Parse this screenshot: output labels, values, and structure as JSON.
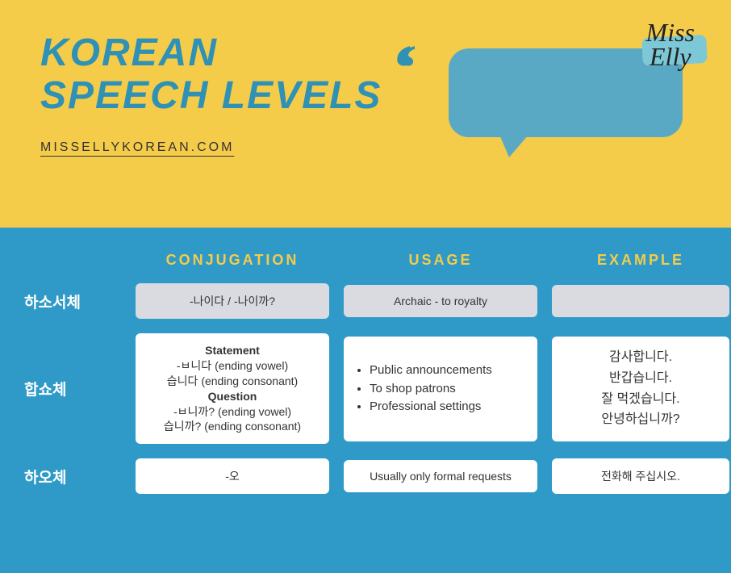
{
  "header": {
    "title_line1": "KOREAN",
    "title_line2": "SPEECH LEVELS",
    "link": "MISSELLYKOREAN.COM",
    "brand_line1": "Miss",
    "brand_line2": "Elly"
  },
  "columns": {
    "conjugation": "CONJUGATION",
    "usage": "USAGE",
    "example": "EXAMPLE"
  },
  "rows": {
    "r1": {
      "label": "하소서체",
      "conjugation": "-나이다 / -나이까?",
      "usage": "Archaic - to royalty",
      "example": ""
    },
    "r2": {
      "label": "합쇼체",
      "statement_title": "Statement",
      "statement_vowel": "-ㅂ니다 (ending vowel)",
      "statement_consonant": "습니다 (ending consonant)",
      "question_title": "Question",
      "question_vowel": "-ㅂ니까? (ending vowel)",
      "question_consonant": "습니까? (ending consonant)",
      "usage_1": "Public announcements",
      "usage_2": "To shop patrons",
      "usage_3": "Professional settings",
      "example_1": "감사합니다.",
      "example_2": "반갑습니다.",
      "example_3": "잘 먹겠습니다.",
      "example_4": "안녕하십니까?"
    },
    "r3": {
      "label": "하오체",
      "conjugation": "-오",
      "usage": "Usually only formal requests",
      "example": "전화해 주십시오."
    }
  },
  "colors": {
    "header_bg": "#f5cc4a",
    "table_bg": "#2f9ac7",
    "accent": "#f5cc4a",
    "title_color": "#2e91b5",
    "bubble": "#5aa9c4",
    "brand_smudge": "#7cc8d6",
    "cell_white": "#ffffff",
    "cell_grey": "#d9dbe0"
  }
}
